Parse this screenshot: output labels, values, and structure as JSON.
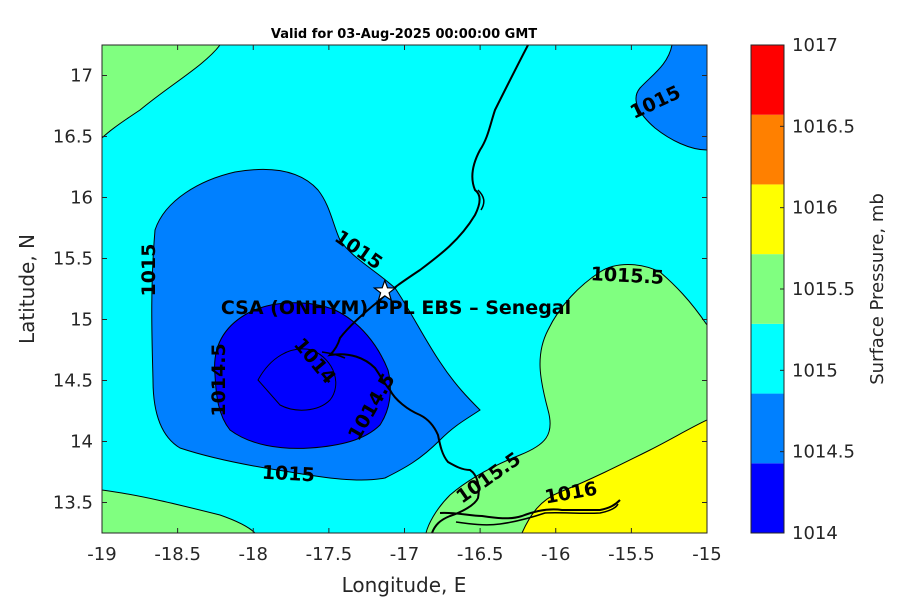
{
  "title": "Valid for 03-Aug-2025 00:00:00 GMT",
  "station_label": "CSA (ONHYM) PPL EBS  – Senegal",
  "xlabel": "Longitude, E",
  "ylabel": "Latitude, N",
  "colorbar_label": "Surface Pressure, mb",
  "colors": {
    "c1014": "#0000ff",
    "c1014_5": "#0080ff",
    "c1015": "#00ffff",
    "c1015_5": "#80ff80",
    "c1016": "#ffff00",
    "c1016_5": "#ff8000",
    "c1017": "#ff0000"
  },
  "chart_data": {
    "type": "contour-map",
    "xlim": [
      -19,
      -15
    ],
    "ylim": [
      13.25,
      17.25
    ],
    "x_ticks": [
      "-19",
      "-18.5",
      "-18",
      "-17.5",
      "-17",
      "-16.5",
      "-16",
      "-15.5",
      "-15"
    ],
    "y_ticks": [
      "13.5",
      "14",
      "14.5",
      "15",
      "15.5",
      "16",
      "16.5",
      "17"
    ],
    "colorbar_ticks": [
      "1014",
      "1014.5",
      "1015",
      "1015.5",
      "1016",
      "1016.5",
      "1017"
    ],
    "contour_labels": [
      "1015",
      "1015",
      "1015",
      "1015",
      "1014.5",
      "1014",
      "1014.5",
      "1015.5",
      "1015.5",
      "1016"
    ],
    "station": {
      "lon": -17.13,
      "lat": 15.23
    }
  }
}
